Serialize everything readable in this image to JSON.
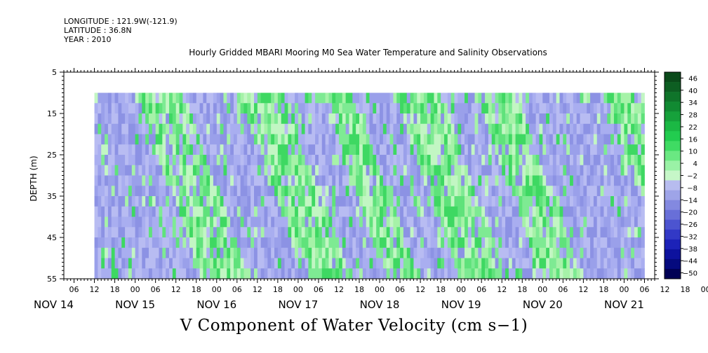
{
  "header": {
    "longitude": "LONGITUDE : 121.9W(-121.9)",
    "latitude": "LATITUDE : 36.8N",
    "year": "YEAR : 2010"
  },
  "chart_data": {
    "type": "heatmap",
    "title": "Hourly Gridded MBARI Mooring M0 Sea Water Temperature and Salinity Observations",
    "bottom_title": "V Component of Water Velocity (cm s−1)",
    "ylabel": "DEPTH (m)",
    "ylim": [
      5,
      55
    ],
    "y_inverted": true,
    "y_ticks": [
      "5",
      "15",
      "25",
      "35",
      "45",
      "55"
    ],
    "x_hour_labels": [
      "06",
      "12",
      "18",
      "00",
      "06",
      "12",
      "18",
      "00",
      "06",
      "12",
      "18",
      "00",
      "06",
      "12",
      "18",
      "00",
      "06",
      "12",
      "18",
      "00",
      "06",
      "12",
      "18",
      "00",
      "06",
      "12",
      "18",
      "00",
      "06",
      "12",
      "18",
      "00",
      "06"
    ],
    "x_day_labels": [
      "NOV 14",
      "NOV 15",
      "NOV 16",
      "NOV 17",
      "NOV 18",
      "NOV 19",
      "NOV 20",
      "NOV 21"
    ],
    "x_range": [
      "2010-11-14T03:00",
      "2010-11-21T09:00"
    ],
    "data_range": {
      "time_start": "2010-11-14T12:00",
      "time_end": "2010-11-21T06:00",
      "depth_top": 10,
      "depth_bottom": 55
    },
    "colorbar": {
      "labels": [
        "46",
        "40",
        "34",
        "28",
        "22",
        "16",
        "10",
        "4",
        "−2",
        "−8",
        "−14",
        "−20",
        "−26",
        "−32",
        "−38",
        "−44",
        "−50"
      ],
      "colors": [
        "#0a4a1a",
        "#0d5e22",
        "#0f742a",
        "#118a32",
        "#16a13b",
        "#1bb844",
        "#22cc4f",
        "#3fdb63",
        "#6ae882",
        "#9af2a6",
        "#c6f7c8",
        "#b7bcef",
        "#9ea4e8",
        "#8389e0",
        "#686fd8",
        "#4c54d0",
        "#3239c6",
        "#1c22b8",
        "#0d129e",
        "#050a7e",
        "#000055"
      ],
      "mid_light_green": "#a6f2a8",
      "mid_light_blue": "#a9aef0"
    },
    "pattern_description_bands": [
      {
        "time": "2010-11-14T12:00",
        "sign": "negative"
      },
      {
        "time": "2010-11-15T00:00",
        "sign": "positive"
      },
      {
        "time": "2010-11-15T14:00",
        "sign": "negative"
      },
      {
        "time": "2010-11-16T06:00",
        "sign": "positive"
      },
      {
        "time": "2010-11-16T20:00",
        "sign": "negative"
      },
      {
        "time": "2010-11-17T06:00",
        "sign": "positive"
      },
      {
        "time": "2010-11-17T16:00",
        "sign": "negative"
      },
      {
        "time": "2010-11-18T04:00",
        "sign": "positive"
      },
      {
        "time": "2010-11-18T18:00",
        "sign": "negative"
      },
      {
        "time": "2010-11-19T04:00",
        "sign": "positive"
      },
      {
        "time": "2010-11-19T16:00",
        "sign": "negative"
      },
      {
        "time": "2010-11-20T06:00",
        "sign": "negative"
      },
      {
        "time": "2010-11-20T18:00",
        "sign": "positive"
      },
      {
        "time": "2010-11-21T02:00",
        "sign": "positive"
      }
    ]
  }
}
